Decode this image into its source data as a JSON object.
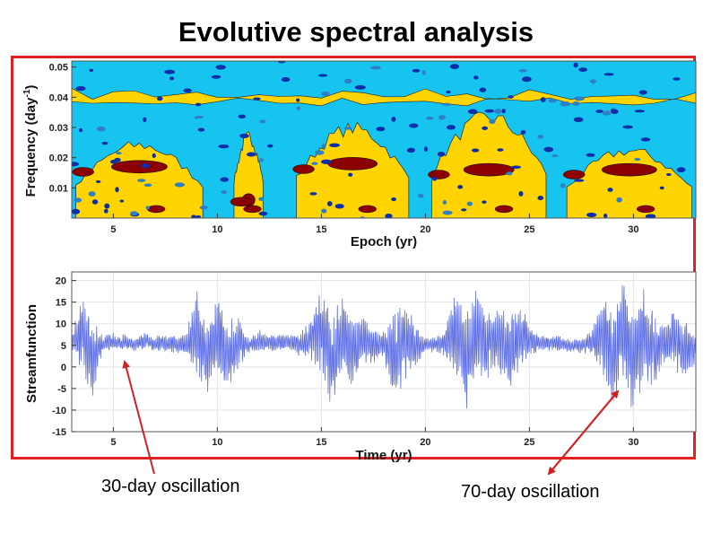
{
  "slide": {
    "title": "Evolutive spectral analysis",
    "annotations": [
      "30-day oscillation",
      "70-day oscillation"
    ]
  },
  "colors": {
    "frame": "#e02222",
    "arrow": "#d42020",
    "contour_background": "#17c4ef",
    "contour_mid": "#ffd400",
    "contour_high": "#8b0000",
    "contour_low": "#0b2fa8",
    "series_line": "#4d5fe0"
  },
  "chart_data": [
    {
      "type": "heatmap",
      "title": "",
      "xlabel": "Epoch (yr)",
      "ylabel": "Frequency (day",
      "ylabel_exponent": "-1",
      "ylabel_suffix": ")",
      "xlim": [
        3,
        33
      ],
      "ylim": [
        0,
        0.052
      ],
      "xticks": [
        5,
        10,
        15,
        20,
        25,
        30
      ],
      "xtick_labels": [
        "5",
        "10",
        "15",
        "20",
        "25",
        "30"
      ],
      "yticks": [
        0.01,
        0.02,
        0.03,
        0.04,
        0.05
      ],
      "ytick_labels": [
        "0.01",
        "0.02",
        "0.03",
        "0.04",
        "0.05"
      ],
      "high_power_regions": [
        {
          "x": [
            3.2,
            9.3
          ],
          "y": [
            0.0,
            0.026
          ],
          "peak_y": 0.017
        },
        {
          "x": [
            10.8,
            12.2
          ],
          "y": [
            0.0,
            0.029
          ],
          "peak_y": 0.006
        },
        {
          "x": [
            13.8,
            19.2
          ],
          "y": [
            0.0,
            0.032
          ],
          "peak_y": 0.018
        },
        {
          "x": [
            20.3,
            25.8
          ],
          "y": [
            0.0,
            0.036
          ],
          "peak_y": 0.016
        },
        {
          "x": [
            26.8,
            32.8
          ],
          "y": [
            0.0,
            0.024
          ],
          "peak_y": 0.016
        }
      ],
      "upper_power_band": {
        "y": [
          0.037,
          0.045
        ]
      }
    },
    {
      "type": "line",
      "title": "",
      "xlabel": "Time (yr)",
      "ylabel": "Streamfunction",
      "xlim": [
        3,
        33
      ],
      "ylim": [
        -15,
        22
      ],
      "xticks": [
        5,
        10,
        15,
        20,
        25,
        30
      ],
      "xtick_labels": [
        "5",
        "10",
        "15",
        "20",
        "25",
        "30"
      ],
      "yticks": [
        20,
        15,
        10,
        5,
        0,
        -5,
        -10,
        -15
      ],
      "ytick_labels": [
        "20",
        "15",
        "10",
        "5",
        "0",
        "-5",
        "-10",
        "-15"
      ],
      "series": [
        {
          "name": "Streamfunction",
          "x": [
            3,
            3.5,
            4,
            4.5,
            5,
            5.5,
            6,
            6.5,
            7,
            7.5,
            8,
            8.5,
            9,
            9.5,
            10,
            10.5,
            11,
            11.5,
            12,
            12.5,
            13,
            13.5,
            14,
            14.5,
            15,
            15.5,
            16,
            16.5,
            17,
            17.5,
            18,
            18.5,
            19,
            19.5,
            20,
            20.5,
            21,
            21.5,
            22,
            22.5,
            23,
            23.5,
            24,
            24.5,
            25,
            25.5,
            26,
            26.5,
            27,
            27.5,
            28,
            28.5,
            29,
            29.5,
            30,
            30.5,
            31,
            31.5,
            32,
            32.5,
            33
          ],
          "values": [
            8,
            14,
            -10,
            5,
            7,
            6,
            4,
            8,
            5,
            6,
            4,
            5,
            17,
            -9,
            15,
            -5,
            6,
            3,
            8,
            5,
            6,
            7,
            4,
            9,
            18,
            -14,
            14,
            -3,
            8,
            2,
            5,
            -11,
            10,
            3,
            4,
            5,
            6,
            17,
            -10,
            15,
            3,
            9,
            -9,
            14,
            7,
            5,
            6,
            5,
            3,
            4,
            6,
            17,
            -12,
            18,
            -15,
            14,
            -3,
            7,
            10,
            -4,
            5
          ],
          "amplitude": [
            2,
            9,
            10,
            2,
            2,
            2,
            1.5,
            2,
            2,
            2,
            2,
            3,
            10,
            9,
            10,
            9,
            6,
            2,
            3,
            2,
            2,
            2,
            3,
            5,
            11,
            12,
            10,
            9,
            6,
            4,
            3,
            12,
            10,
            6,
            2,
            2,
            4,
            11,
            12,
            11,
            8,
            8,
            11,
            9,
            4,
            2,
            2,
            2,
            1.5,
            2,
            3,
            10,
            12,
            12,
            13,
            11,
            9,
            6,
            7,
            8,
            4
          ]
        }
      ]
    }
  ]
}
